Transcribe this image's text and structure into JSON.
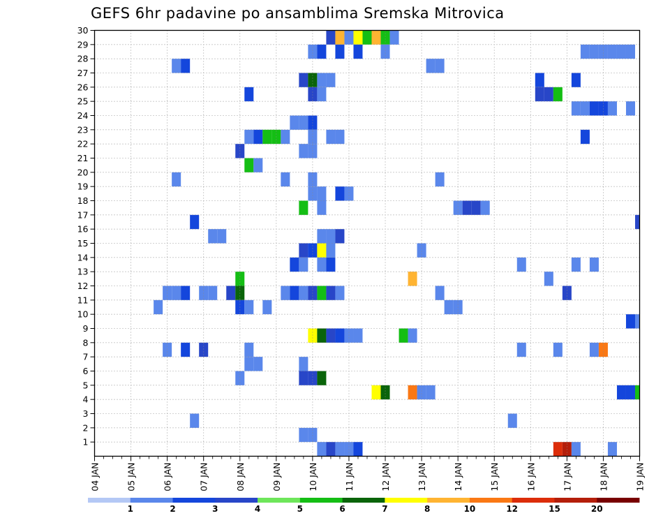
{
  "chart_data": {
    "type": "heatmap",
    "title": "GEFS 6hr padavine po ansamblima Sremska Mitrovica",
    "x_tick_labels": [
      "04 JAN",
      "05 JAN",
      "06 JAN",
      "07 JAN",
      "08 JAN",
      "09 JAN",
      "10 JAN",
      "11 JAN",
      "12 JAN",
      "13 JAN",
      "14 JAN",
      "15 JAN",
      "16 JAN",
      "17 JAN",
      "18 JAN",
      "19 JAN"
    ],
    "y_tick_labels": [
      "1",
      "2",
      "3",
      "4",
      "5",
      "6",
      "7",
      "8",
      "9",
      "10",
      "11",
      "12",
      "13",
      "14",
      "15",
      "16",
      "17",
      "18",
      "19",
      "20",
      "21",
      "22",
      "23",
      "24",
      "25",
      "26",
      "27",
      "28",
      "29",
      "30"
    ],
    "x_unit": "6-hour step",
    "xlim": [
      0,
      60
    ],
    "ylim": [
      0,
      30
    ],
    "grid": true,
    "legend_position": "bottom",
    "colorbar": {
      "levels": [
        "1",
        "2",
        "3",
        "4",
        "5",
        "6",
        "7",
        "8",
        "10",
        "12",
        "15",
        "20"
      ],
      "colors": [
        "#b4c8f5",
        "#5a87eb",
        "#1446dc",
        "#2846c8",
        "#6ee65a",
        "#14be14",
        "#0a640a",
        "#ffff00",
        "#ffb432",
        "#fa7814",
        "#dc2d0a",
        "#b41e0a",
        "#780000"
      ]
    },
    "cells": [
      [
        26,
        30,
        3
      ],
      [
        27,
        30,
        8
      ],
      [
        28,
        30,
        1
      ],
      [
        29,
        30,
        7
      ],
      [
        30,
        30,
        5
      ],
      [
        31,
        30,
        8
      ],
      [
        32,
        30,
        5
      ],
      [
        33,
        30,
        1
      ],
      [
        24,
        29,
        1
      ],
      [
        25,
        29,
        2
      ],
      [
        27,
        29,
        2
      ],
      [
        29,
        29,
        2
      ],
      [
        32,
        29,
        1
      ],
      [
        54,
        29,
        1
      ],
      [
        55,
        29,
        1
      ],
      [
        56,
        29,
        1
      ],
      [
        57,
        29,
        1
      ],
      [
        58,
        29,
        1
      ],
      [
        59,
        29,
        1
      ],
      [
        9,
        28,
        1
      ],
      [
        10,
        28,
        2
      ],
      [
        37,
        28,
        1
      ],
      [
        38,
        28,
        1
      ],
      [
        23,
        27,
        3
      ],
      [
        24,
        27,
        6
      ],
      [
        25,
        27,
        1
      ],
      [
        26,
        27,
        1
      ],
      [
        49,
        27,
        2
      ],
      [
        53,
        27,
        2
      ],
      [
        17,
        26,
        2
      ],
      [
        24,
        26,
        3
      ],
      [
        25,
        26,
        1
      ],
      [
        49,
        26,
        3
      ],
      [
        50,
        26,
        3
      ],
      [
        51,
        26,
        5
      ],
      [
        53,
        25,
        1
      ],
      [
        54,
        25,
        1
      ],
      [
        55,
        25,
        2
      ],
      [
        56,
        25,
        2
      ],
      [
        57,
        25,
        1
      ],
      [
        59,
        25,
        1
      ],
      [
        22,
        24,
        1
      ],
      [
        23,
        24,
        1
      ],
      [
        24,
        24,
        2
      ],
      [
        17,
        23,
        1
      ],
      [
        18,
        23,
        2
      ],
      [
        19,
        23,
        5
      ],
      [
        20,
        23,
        5
      ],
      [
        21,
        23,
        1
      ],
      [
        24,
        23,
        1
      ],
      [
        26,
        23,
        1
      ],
      [
        27,
        23,
        1
      ],
      [
        54,
        23,
        2
      ],
      [
        16,
        22,
        3
      ],
      [
        23,
        22,
        1
      ],
      [
        24,
        22,
        1
      ],
      [
        17,
        21,
        5
      ],
      [
        18,
        21,
        1
      ],
      [
        9,
        20,
        1
      ],
      [
        21,
        20,
        1
      ],
      [
        24,
        20,
        1
      ],
      [
        38,
        20,
        1
      ],
      [
        24,
        19,
        1
      ],
      [
        25,
        19,
        1
      ],
      [
        27,
        19,
        2
      ],
      [
        28,
        19,
        1
      ],
      [
        23,
        18,
        5
      ],
      [
        25,
        18,
        1
      ],
      [
        40,
        18,
        1
      ],
      [
        41,
        18,
        3
      ],
      [
        42,
        18,
        3
      ],
      [
        43,
        18,
        1
      ],
      [
        11,
        17,
        2
      ],
      [
        60,
        17,
        3
      ],
      [
        13,
        16,
        1
      ],
      [
        14,
        16,
        1
      ],
      [
        25,
        16,
        1
      ],
      [
        26,
        16,
        1
      ],
      [
        27,
        16,
        3
      ],
      [
        23,
        15,
        3
      ],
      [
        24,
        15,
        2
      ],
      [
        25,
        15,
        7
      ],
      [
        26,
        15,
        1
      ],
      [
        36,
        15,
        1
      ],
      [
        22,
        14,
        2
      ],
      [
        23,
        14,
        1
      ],
      [
        25,
        14,
        1
      ],
      [
        26,
        14,
        2
      ],
      [
        47,
        14,
        1
      ],
      [
        53,
        14,
        1
      ],
      [
        55,
        14,
        1
      ],
      [
        16,
        13,
        5
      ],
      [
        35,
        13,
        8
      ],
      [
        50,
        13,
        1
      ],
      [
        8,
        12,
        1
      ],
      [
        9,
        12,
        1
      ],
      [
        10,
        12,
        2
      ],
      [
        12,
        12,
        1
      ],
      [
        13,
        12,
        1
      ],
      [
        15,
        12,
        3
      ],
      [
        16,
        12,
        6
      ],
      [
        21,
        12,
        1
      ],
      [
        22,
        12,
        2
      ],
      [
        23,
        12,
        1
      ],
      [
        24,
        12,
        3
      ],
      [
        25,
        12,
        5
      ],
      [
        26,
        12,
        3
      ],
      [
        27,
        12,
        1
      ],
      [
        38,
        12,
        1
      ],
      [
        52,
        12,
        3
      ],
      [
        7,
        11,
        1
      ],
      [
        16,
        11,
        2
      ],
      [
        17,
        11,
        1
      ],
      [
        19,
        11,
        1
      ],
      [
        39,
        11,
        1
      ],
      [
        40,
        11,
        1
      ],
      [
        59,
        10,
        2
      ],
      [
        60,
        10,
        1
      ],
      [
        24,
        9,
        7
      ],
      [
        25,
        9,
        6
      ],
      [
        26,
        9,
        3
      ],
      [
        27,
        9,
        2
      ],
      [
        28,
        9,
        1
      ],
      [
        29,
        9,
        1
      ],
      [
        34,
        9,
        5
      ],
      [
        35,
        9,
        1
      ],
      [
        8,
        8,
        1
      ],
      [
        10,
        8,
        2
      ],
      [
        12,
        8,
        3
      ],
      [
        17,
        8,
        1
      ],
      [
        47,
        8,
        1
      ],
      [
        51,
        8,
        1
      ],
      [
        55,
        8,
        1
      ],
      [
        56,
        8,
        9
      ],
      [
        17,
        7,
        1
      ],
      [
        18,
        7,
        1
      ],
      [
        23,
        7,
        1
      ],
      [
        16,
        6,
        1
      ],
      [
        23,
        6,
        3
      ],
      [
        24,
        6,
        3
      ],
      [
        25,
        6,
        6
      ],
      [
        31,
        5,
        7
      ],
      [
        32,
        5,
        6
      ],
      [
        35,
        5,
        9
      ],
      [
        36,
        5,
        1
      ],
      [
        37,
        5,
        1
      ],
      [
        58,
        5,
        2
      ],
      [
        59,
        5,
        2
      ],
      [
        60,
        5,
        5
      ],
      [
        11,
        3,
        1
      ],
      [
        46,
        3,
        1
      ],
      [
        23,
        2,
        1
      ],
      [
        24,
        2,
        1
      ],
      [
        25,
        1,
        1
      ],
      [
        26,
        1,
        3
      ],
      [
        27,
        1,
        1
      ],
      [
        28,
        1,
        1
      ],
      [
        29,
        1,
        2
      ],
      [
        51,
        1,
        10
      ],
      [
        52,
        1,
        11
      ],
      [
        53,
        1,
        1
      ],
      [
        57,
        1,
        1
      ]
    ]
  }
}
